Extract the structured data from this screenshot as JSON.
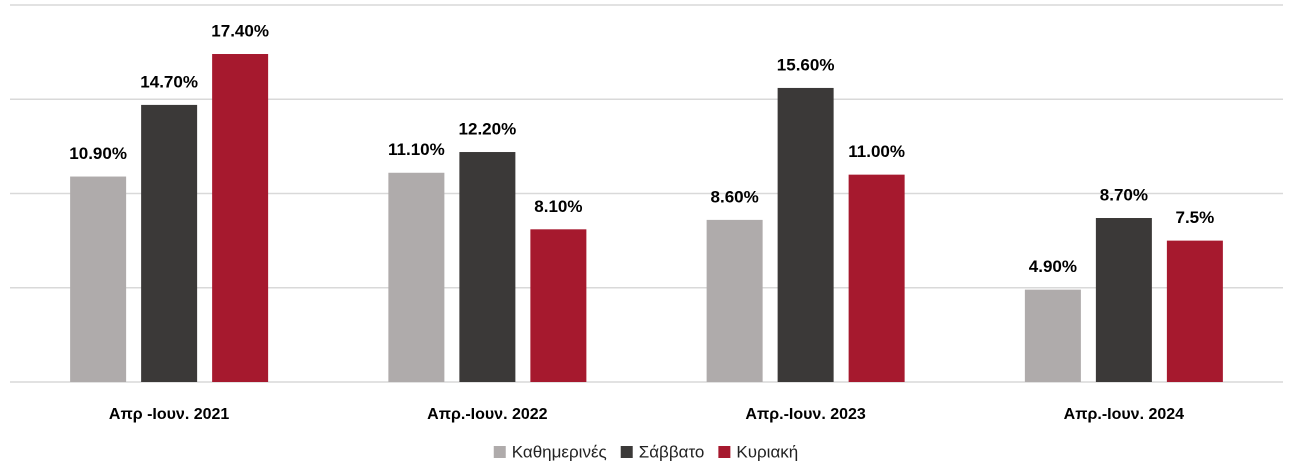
{
  "chart_data": {
    "type": "bar",
    "categories": [
      "Απρ -Ιουν. 2021",
      "Απρ.-Ιουν. 2022",
      "Απρ.-Ιουν. 2023",
      "Απρ.-Ιουν. 2024"
    ],
    "series": [
      {
        "name": "Καθημερινές",
        "color": "#afabab",
        "values": [
          10.9,
          11.1,
          8.6,
          4.9
        ],
        "value_labels": [
          "10.90%",
          "11.10%",
          "8.60%",
          "4.90%"
        ]
      },
      {
        "name": "Σάββατο",
        "color": "#3b3938",
        "values": [
          14.7,
          12.2,
          15.6,
          8.7
        ],
        "value_labels": [
          "14.70%",
          "12.20%",
          "15.60%",
          "8.70%"
        ]
      },
      {
        "name": "Κυριακή",
        "color": "#a6192e",
        "values": [
          17.4,
          8.1,
          11.0,
          7.5
        ],
        "value_labels": [
          "17.40%",
          "8.10%",
          "11.00%",
          "7.5%"
        ]
      }
    ],
    "ylim": [
      0,
      20
    ],
    "yticks": [
      0,
      5,
      10,
      15,
      20
    ],
    "grid": true,
    "legend": "bottom"
  }
}
